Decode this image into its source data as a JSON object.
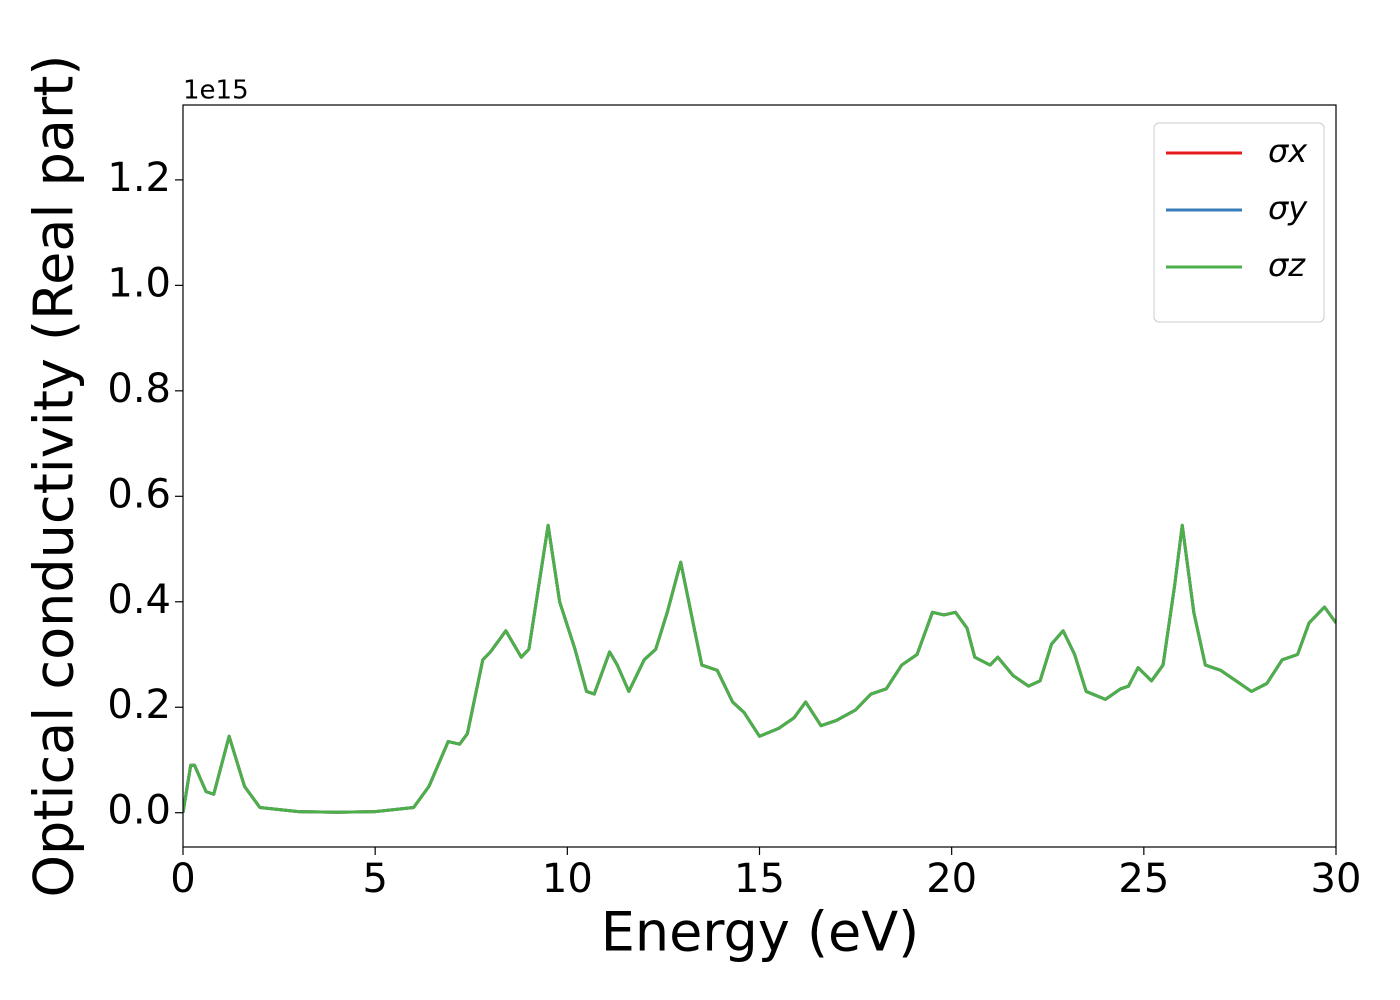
{
  "chart_data": {
    "type": "line",
    "xlabel": "Energy (eV)",
    "ylabel": "Optical conductivity (Real part)",
    "y_offset_label": "1e15",
    "x": [
      0,
      0.2,
      0.3,
      0.6,
      0.8,
      1.2,
      1.6,
      2.0,
      3,
      4,
      5,
      6,
      6.4,
      6.9,
      7.2,
      7.4,
      7.8,
      8.0,
      8.4,
      8.8,
      9.0,
      9.5,
      9.8,
      10.2,
      10.5,
      10.7,
      11.1,
      11.3,
      11.6,
      12.0,
      12.3,
      12.6,
      12.95,
      13.3,
      13.5,
      13.9,
      14.3,
      14.6,
      15.0,
      15.5,
      15.9,
      16.2,
      16.6,
      17,
      17.5,
      17.9,
      18.3,
      18.7,
      19.1,
      19.5,
      19.8,
      20.1,
      20.4,
      20.6,
      21.0,
      21.2,
      21.6,
      22,
      22.3,
      22.6,
      22.9,
      23.2,
      23.5,
      24,
      24.4,
      24.6,
      24.85,
      25.2,
      25.5,
      25.8,
      26.0,
      26.3,
      26.6,
      27,
      27.4,
      27.8,
      28.2,
      28.6,
      29,
      29.3,
      29.7,
      30
    ],
    "series": [
      {
        "name": "σx",
        "color": "#e41a1c",
        "values": [
          0.0,
          0.09,
          0.09,
          0.04,
          0.035,
          0.145,
          0.05,
          0.01,
          0.002,
          0.001,
          0.002,
          0.01,
          0.05,
          0.135,
          0.13,
          0.15,
          0.29,
          0.305,
          0.345,
          0.295,
          0.31,
          0.545,
          0.4,
          0.31,
          0.23,
          0.225,
          0.305,
          0.28,
          0.23,
          0.29,
          0.31,
          0.38,
          0.475,
          0.35,
          0.28,
          0.27,
          0.21,
          0.19,
          0.145,
          0.16,
          0.18,
          0.21,
          0.165,
          0.175,
          0.195,
          0.225,
          0.235,
          0.28,
          0.3,
          0.38,
          0.375,
          0.38,
          0.35,
          0.295,
          0.28,
          0.295,
          0.26,
          0.24,
          0.25,
          0.32,
          0.345,
          0.3,
          0.23,
          0.215,
          0.235,
          0.24,
          0.275,
          0.25,
          0.28,
          0.43,
          0.545,
          0.38,
          0.28,
          0.27,
          0.25,
          0.23,
          0.245,
          0.29,
          0.3,
          0.36,
          0.39,
          0.36
        ]
      },
      {
        "name": "σy",
        "color": "#377eb8",
        "values": [
          0.0,
          0.09,
          0.09,
          0.04,
          0.035,
          0.145,
          0.05,
          0.01,
          0.002,
          0.001,
          0.002,
          0.01,
          0.05,
          0.135,
          0.13,
          0.15,
          0.29,
          0.305,
          0.345,
          0.295,
          0.31,
          0.545,
          0.4,
          0.31,
          0.23,
          0.225,
          0.305,
          0.28,
          0.23,
          0.29,
          0.31,
          0.38,
          0.475,
          0.35,
          0.28,
          0.27,
          0.21,
          0.19,
          0.145,
          0.16,
          0.18,
          0.21,
          0.165,
          0.175,
          0.195,
          0.225,
          0.235,
          0.28,
          0.3,
          0.38,
          0.375,
          0.38,
          0.35,
          0.295,
          0.28,
          0.295,
          0.26,
          0.24,
          0.25,
          0.32,
          0.345,
          0.3,
          0.23,
          0.215,
          0.235,
          0.24,
          0.275,
          0.25,
          0.28,
          0.43,
          0.545,
          0.38,
          0.28,
          0.27,
          0.25,
          0.23,
          0.245,
          0.29,
          0.3,
          0.36,
          0.39,
          0.36
        ]
      },
      {
        "name": "σz",
        "color": "#4daf4a",
        "values": [
          0.0,
          0.09,
          0.09,
          0.04,
          0.035,
          0.145,
          0.05,
          0.01,
          0.002,
          0.001,
          0.002,
          0.01,
          0.05,
          0.135,
          0.13,
          0.15,
          0.29,
          0.305,
          0.345,
          0.295,
          0.31,
          0.545,
          0.4,
          0.31,
          0.23,
          0.225,
          0.305,
          0.28,
          0.23,
          0.29,
          0.31,
          0.38,
          0.475,
          0.35,
          0.28,
          0.27,
          0.21,
          0.19,
          0.145,
          0.16,
          0.18,
          0.21,
          0.165,
          0.175,
          0.195,
          0.225,
          0.235,
          0.28,
          0.3,
          0.38,
          0.375,
          0.38,
          0.35,
          0.295,
          0.28,
          0.295,
          0.26,
          0.24,
          0.25,
          0.32,
          0.345,
          0.3,
          0.23,
          0.215,
          0.235,
          0.24,
          0.275,
          0.25,
          0.28,
          0.43,
          0.545,
          0.38,
          0.28,
          0.27,
          0.25,
          0.23,
          0.245,
          0.29,
          0.3,
          0.36,
          0.39,
          0.36
        ]
      }
    ],
    "xlim": [
      0,
      30
    ],
    "xticks": [
      0,
      5,
      10,
      15,
      20,
      25,
      30
    ],
    "ylim": [
      -0.065,
      1.342
    ],
    "yticks": [
      {
        "value": 0,
        "label": "0.0"
      },
      0.2,
      0.4,
      0.6,
      0.8,
      {
        "value": 1,
        "label": "1.0"
      },
      1.2
    ],
    "grid": false,
    "legend": "upper right"
  }
}
